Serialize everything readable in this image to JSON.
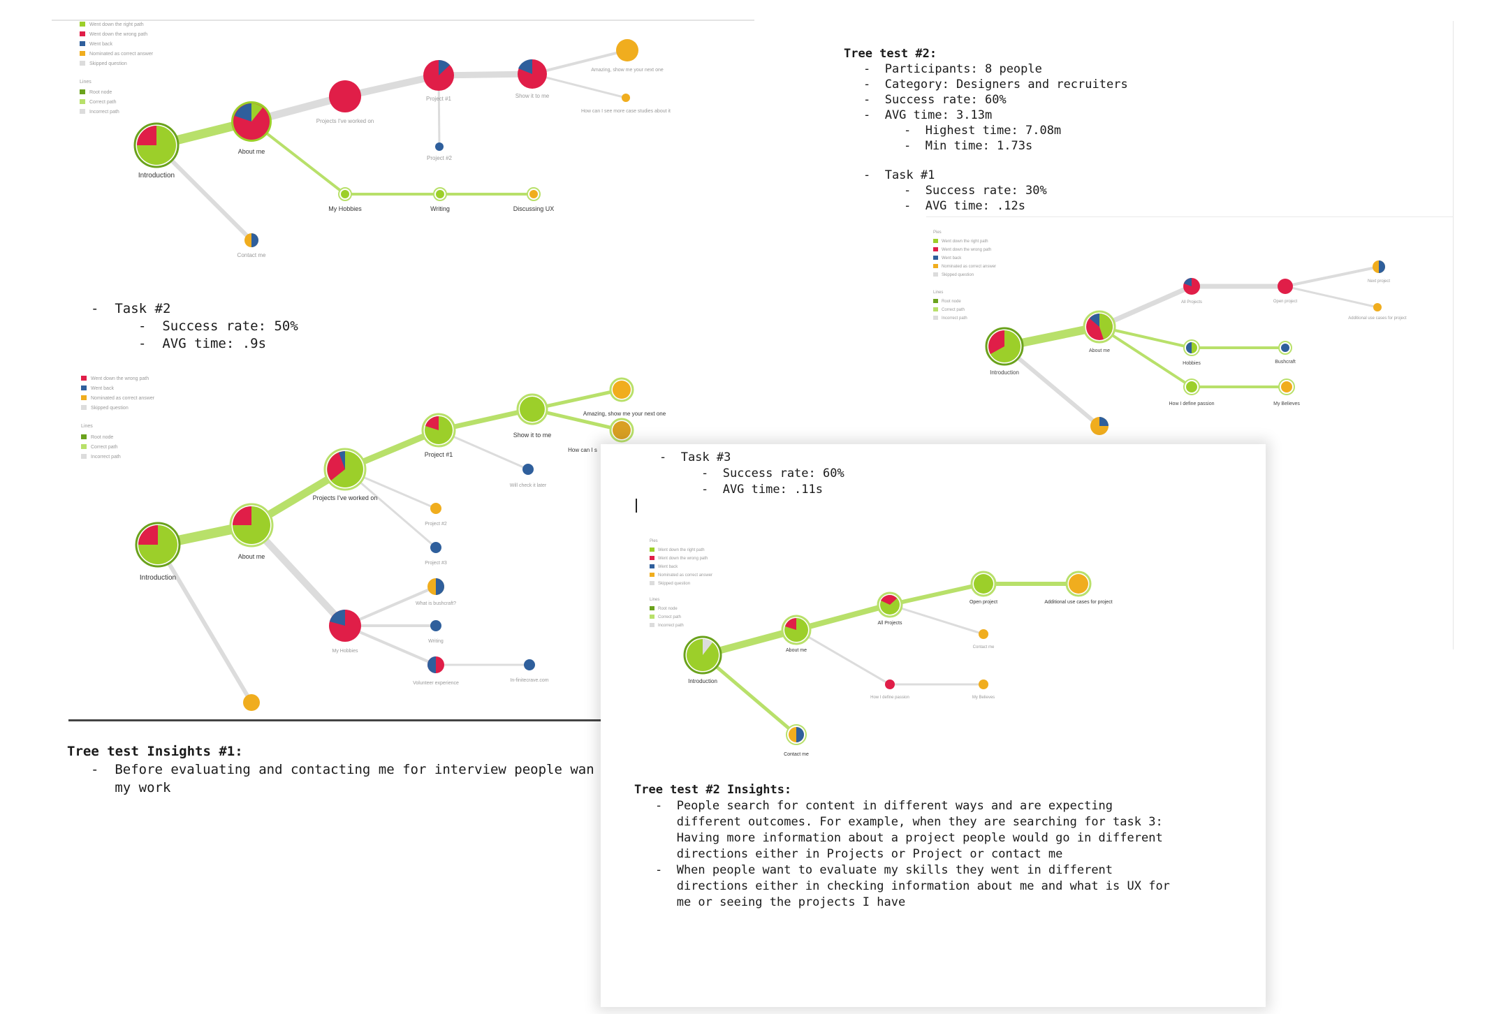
{
  "legend_top_left": {
    "pie_items": [
      "Went down the right path",
      "Went down the wrong path",
      "Went back",
      "Nominated as correct answer",
      "Skipped question"
    ],
    "lines_title": "Lines",
    "line_items": [
      "Root node",
      "Correct path",
      "Incorrect path"
    ]
  },
  "legend_mid_left": {
    "pie_items": [
      "Went down the wrong path",
      "Went back",
      "Nominated as correct answer",
      "Skipped question"
    ],
    "lines_title": "Lines",
    "line_items": [
      "Root node",
      "Correct path",
      "Incorrect path"
    ]
  },
  "legend_right": {
    "pies_title": "Pies",
    "pie_items": [
      "Went down the right path",
      "Went down the wrong path",
      "Went back",
      "Nominated as correct answer",
      "Skipped question"
    ],
    "lines_title": "Lines",
    "line_items": [
      "Root node",
      "Correct path",
      "Incorrect path"
    ]
  },
  "legend_card": {
    "pies_title": "Pies",
    "pie_items": [
      "Went down the right path",
      "Went down the wrong path",
      "Went back",
      "Nominated as correct answer",
      "Skipped question"
    ],
    "lines_title": "Lines",
    "line_items": [
      "Root node",
      "Correct path",
      "Incorrect path"
    ]
  },
  "colors": {
    "right": "#9ccf2a",
    "wrong": "#e01e48",
    "back": "#2f5f9c",
    "nominated": "#f0ad1e",
    "skipped": "#dcdcdc"
  },
  "tree1": {
    "introduction": "Introduction",
    "about_me": "About me",
    "projects": "Projects I've worked on",
    "project1": "Project #1",
    "project2": "Project #2",
    "show_it": "Show it to me",
    "amazing": "Amazing, show me your next one",
    "how_can": "How can I see more case studies about it",
    "hobbies": "My Hobbies",
    "writing": "Writing",
    "discussing": "Discussing UX",
    "contact": "Contact me"
  },
  "task2": {
    "title": "-  Task #2",
    "success": "-  Success rate: 50%",
    "avg": "-  AVG time: .9s"
  },
  "tree2": {
    "introduction": "Introduction",
    "about_me": "About me",
    "projects": "Projects I've worked on",
    "project1": "Project #1",
    "show_it": "Show it to me",
    "amazing": "Amazing, show me your next one",
    "how_can": "How can I s",
    "will_check": "Will check it later",
    "project2": "Project #2",
    "project3": "Project #3",
    "hobbies": "My Hobbies",
    "bushcraft": "What is bushcraft?",
    "writing": "Writing",
    "volunteer": "Volunteer experience",
    "infinite": "In-finitecrave.com"
  },
  "insights1": {
    "title": "Tree test Insights #1:",
    "line1": "-  Before evaluating and contacting me for interview people wan",
    "line2": "   my work"
  },
  "tt2": {
    "title": "Tree test #2:",
    "participants": "-  Participants: 8 people",
    "category": "-  Category: Designers and recruiters",
    "success": "-  Success rate: 60%",
    "avg": "-  AVG time: 3.13m",
    "highest": "-  Highest time: 7.08m",
    "min": "-  Min time: 1.73s",
    "task1": "-  Task #1",
    "task1_success": "-  Success rate: 30%",
    "task1_avg": "-  AVG time: .12s"
  },
  "tree3": {
    "introduction": "Introduction",
    "about_me": "About me",
    "all_projects": "All Projects",
    "open_project": "Open project",
    "next_project": "Next project",
    "additional": "Additional use cases for project",
    "hobbies": "Hobbies",
    "bushcraft": "Bushcraft",
    "passion": "How I define passion",
    "believes": "My Believes"
  },
  "task3": {
    "title": "-  Task #3",
    "success": "-  Success rate: 60%",
    "avg": "-  AVG time: .11s"
  },
  "tree4": {
    "introduction": "Introduction",
    "about_me": "About me",
    "all_projects": "All Projects",
    "open_project": "Open project",
    "additional": "Additional use cases for project",
    "contact_small": "Contact me",
    "passion": "How I define passion",
    "believes": "My Believes",
    "contact": "Contact me"
  },
  "insights2": {
    "title": "Tree test #2 Insights:",
    "p1": [
      "-  People search for content in different ways and are expecting",
      "   different outcomes. For example, when they are searching for task 3:",
      "   Having more information about a project people would go in different",
      "   directions either in Projects or Project or contact me"
    ],
    "p2": [
      "-  When people want to evaluate my skills they went in different",
      "   directions either in checking information about me and what is UX for",
      "   me or seeing the projects I have"
    ]
  }
}
